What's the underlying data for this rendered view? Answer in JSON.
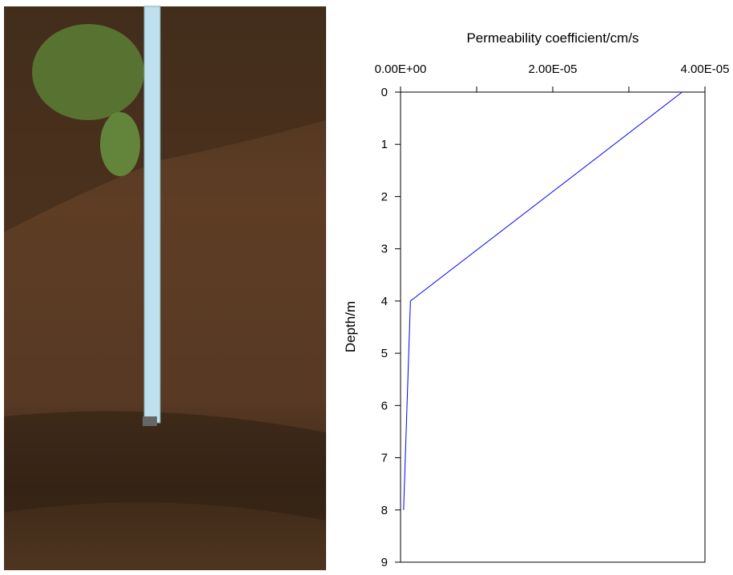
{
  "chart_data": {
    "type": "line",
    "x_label": "Permeability coefficient/cm/s",
    "y_label": "Depth/m",
    "xlim": [
      0,
      4e-05
    ],
    "xticks": [
      {
        "value": 0,
        "label": "0.00E+00"
      },
      {
        "value": 2e-05,
        "label": "2.00E-05"
      },
      {
        "value": 4e-05,
        "label": "4.00E-05"
      }
    ],
    "xminor_ticks": [
      1e-05,
      3e-05
    ],
    "x_axis_position": "top",
    "ylim": [
      0,
      9
    ],
    "y_inverted": true,
    "yticks": [
      0,
      1,
      2,
      3,
      4,
      5,
      6,
      7,
      8,
      9
    ],
    "series": [
      {
        "color": "#0000ff",
        "x": [
          3.7e-05,
          1.3e-06,
          4e-07
        ],
        "y": [
          0,
          4,
          8
        ]
      }
    ]
  }
}
